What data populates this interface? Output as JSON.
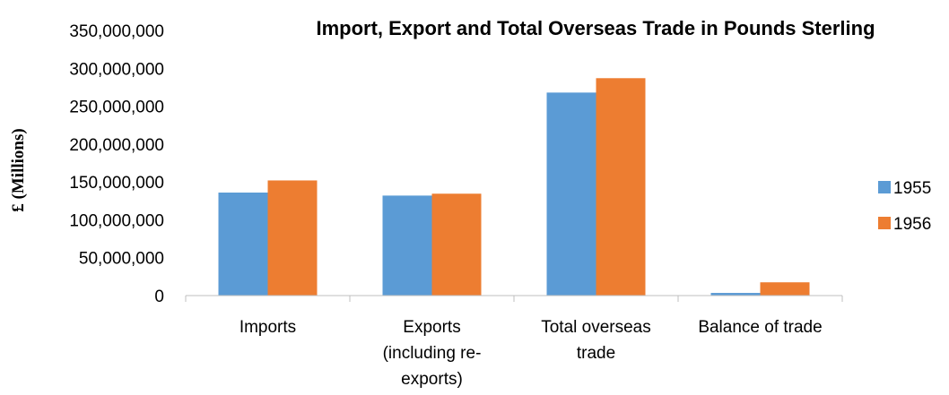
{
  "chart_data": {
    "type": "bar",
    "title": "Import, Export and Total Overseas Trade in Pounds Sterling",
    "xlabel": "",
    "ylabel": "£ (Millions)",
    "categories": [
      [
        "Imports"
      ],
      [
        "Exports",
        "(including re-",
        "exports)"
      ],
      [
        "Total overseas",
        "trade"
      ],
      [
        "Balance of trade"
      ]
    ],
    "series": [
      {
        "name": "1955",
        "color": "#5b9bd5",
        "values": [
          136000000,
          132000000,
          268000000,
          3500000
        ]
      },
      {
        "name": "1956",
        "color": "#ed7d31",
        "values": [
          152000000,
          134500000,
          287000000,
          17500000
        ]
      }
    ],
    "ylim": [
      0,
      350000000
    ],
    "yticks": [
      "0",
      "50,000,000",
      "100,000,000",
      "150,000,000",
      "200,000,000",
      "250,000,000",
      "300,000,000",
      "350,000,000"
    ],
    "ytick_values": [
      0,
      50000000,
      100000000,
      150000000,
      200000000,
      250000000,
      300000000,
      350000000
    ],
    "grid": false,
    "legend_position": "right"
  }
}
